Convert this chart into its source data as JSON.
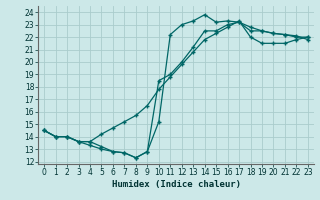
{
  "xlabel": "Humidex (Indice chaleur)",
  "bg_color": "#cce8e8",
  "grid_color": "#aacccc",
  "line_color": "#006666",
  "xlim": [
    -0.5,
    23.5
  ],
  "ylim": [
    11.8,
    24.5
  ],
  "xticks": [
    0,
    1,
    2,
    3,
    4,
    5,
    6,
    7,
    8,
    9,
    10,
    11,
    12,
    13,
    14,
    15,
    16,
    17,
    18,
    19,
    20,
    21,
    22,
    23
  ],
  "yticks": [
    12,
    13,
    14,
    15,
    16,
    17,
    18,
    19,
    20,
    21,
    22,
    23,
    24
  ],
  "line1_x": [
    0,
    1,
    2,
    3,
    4,
    5,
    6,
    7,
    8,
    9,
    10,
    11,
    12,
    13,
    14,
    15,
    16,
    17,
    18,
    19,
    20,
    21,
    22,
    23
  ],
  "line1_y": [
    14.5,
    14.0,
    14.0,
    13.6,
    13.6,
    13.2,
    12.8,
    12.7,
    12.3,
    12.8,
    15.2,
    22.2,
    23.0,
    23.3,
    23.8,
    23.2,
    23.3,
    23.2,
    22.8,
    22.5,
    22.3,
    22.2,
    22.1,
    21.8
  ],
  "line2_x": [
    0,
    1,
    2,
    3,
    4,
    5,
    6,
    7,
    8,
    9,
    10,
    11,
    12,
    13,
    14,
    15,
    16,
    17,
    18,
    19,
    20,
    21,
    22,
    23
  ],
  "line2_y": [
    14.5,
    14.0,
    14.0,
    13.6,
    13.6,
    14.2,
    14.7,
    15.2,
    15.7,
    16.5,
    17.8,
    18.8,
    19.8,
    20.8,
    21.8,
    22.3,
    22.8,
    23.3,
    22.0,
    21.5,
    21.5,
    21.5,
    21.8,
    22.0
  ],
  "line3_x": [
    0,
    1,
    2,
    3,
    4,
    5,
    6,
    7,
    8,
    9,
    10,
    11,
    12,
    13,
    14,
    15,
    16,
    17,
    18,
    19,
    20,
    21,
    22,
    23
  ],
  "line3_y": [
    14.5,
    14.0,
    14.0,
    13.6,
    13.3,
    13.0,
    12.8,
    12.7,
    12.3,
    12.8,
    18.5,
    19.0,
    20.0,
    21.2,
    22.5,
    22.5,
    23.0,
    23.2,
    22.5,
    22.5,
    22.3,
    22.2,
    22.0,
    22.0
  ]
}
